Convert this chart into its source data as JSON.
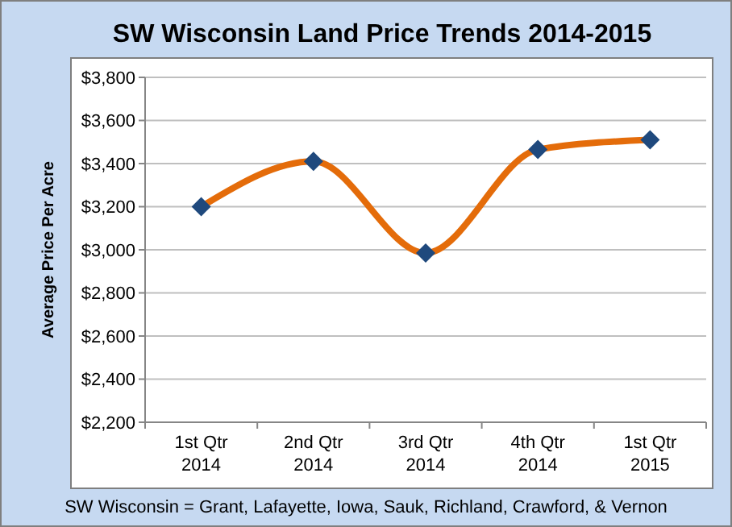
{
  "chart_data": {
    "type": "line",
    "title": "SW Wisconsin Land Price Trends 2014-2015",
    "ylabel": "Average Price  Per Acre",
    "categories": [
      "1st Qtr\n2014",
      "2nd Qtr\n2014",
      "3rd Qtr\n2014",
      "4th Qtr\n2014",
      "1st Qtr\n2015"
    ],
    "series": [
      {
        "color": "#e46c0a",
        "marker": "none",
        "values": [
          3200,
          3410,
          2985,
          3465,
          3510
        ]
      },
      {
        "type": "scatter",
        "color": "#1f497d",
        "marker": "diamond",
        "values": [
          3200,
          3410,
          2985,
          3465,
          3510
        ]
      }
    ],
    "line_style": "solid",
    "ylim": [
      2200,
      3800
    ],
    "yticks": [
      {
        "value": 2200,
        "label": "$2,200"
      },
      {
        "value": 2400,
        "label": "$2,400"
      },
      {
        "value": 2600,
        "label": "$2,600"
      },
      {
        "value": 2800,
        "label": "$2,800"
      },
      {
        "value": 3000,
        "label": "$3,000"
      },
      {
        "value": 3200,
        "label": "$3,200"
      },
      {
        "value": 3400,
        "label": "$3,400"
      },
      {
        "value": 3600,
        "label": "$3,600"
      },
      {
        "value": 3800,
        "label": "$3,800"
      }
    ],
    "grid": "y",
    "annotations": [
      "SW Wisconsin = Grant, Lafayette, Iowa, Sauk, Richland, Crawford, & Vernon"
    ]
  }
}
